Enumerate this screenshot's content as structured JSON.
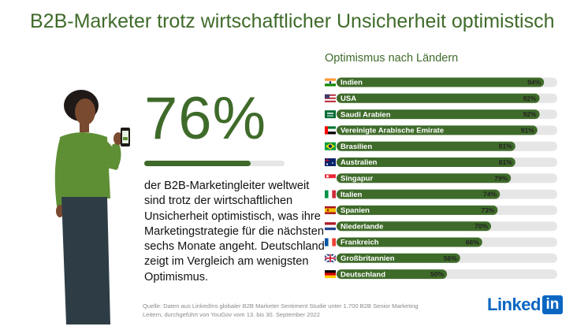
{
  "header": {
    "title": "B2B-Marketer trotz wirtschaftlicher Unsicherheit optimistisch"
  },
  "highlight": {
    "value_label": "76%",
    "share": 0.76,
    "text": "der B2B-Marketingleiter weltweit sind trotz der wirtschaftlichen Unsicherheit optimistisch, was ihre Marketingstrategie für die nächsten sechs Monate angeht. Deutschland zeigt im Vergleich am wenigsten Optimismus."
  },
  "footer": {
    "source": "Quelle: Daten aus LinkedIns globaler B2B Marketer Sentiment Studie unter 1.700 B2B Senior Marketing Leitern, durchgeführt von YouGov vom 13. bis 30. September 2022",
    "logo_text": "Linked",
    "logo_box": "in"
  },
  "colors": {
    "accent": "#3f6b2a",
    "track": "#e6e6e6",
    "logo_blue": "#0a66c2"
  },
  "chart_data": {
    "type": "bar",
    "orientation": "horizontal",
    "title": "Optimismus nach Ländern",
    "categories": [
      "Indien",
      "USA",
      "Saudi Arabien",
      "Vereinigte Arabische Emirate",
      "Brasilien",
      "Australien",
      "Singapur",
      "Italien",
      "Spanien",
      "Niederlande",
      "Frankreich",
      "Großbritannien",
      "Deutschland"
    ],
    "values": [
      94,
      92,
      92,
      91,
      81,
      81,
      79,
      74,
      73,
      70,
      66,
      56,
      50
    ],
    "value_labels": [
      "94%",
      "92%",
      "92%",
      "91%",
      "81%",
      "81%",
      "79%",
      "74%",
      "73%",
      "70%",
      "66%",
      "56%",
      "50%"
    ],
    "flags": [
      "india-flag-icon",
      "usa-flag-icon",
      "saudi-arabia-flag-icon",
      "uae-flag-icon",
      "brazil-flag-icon",
      "australia-flag-icon",
      "singapore-flag-icon",
      "italy-flag-icon",
      "spain-flag-icon",
      "netherlands-flag-icon",
      "france-flag-icon",
      "uk-flag-icon",
      "germany-flag-icon"
    ],
    "xlim": [
      0,
      100
    ],
    "grid": false,
    "legend": "none"
  }
}
